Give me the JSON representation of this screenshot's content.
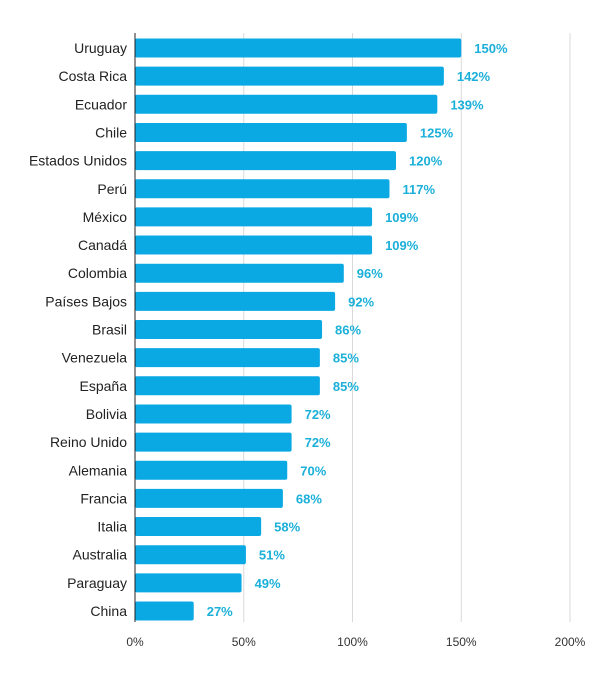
{
  "chart_data": {
    "type": "bar",
    "orientation": "horizontal",
    "categories": [
      "Uruguay",
      "Costa Rica",
      "Ecuador",
      "Chile",
      "Estados Unidos",
      "Perú",
      "México",
      "Canadá",
      "Colombia",
      "Países Bajos",
      "Brasil",
      "Venezuela",
      "España",
      "Bolivia",
      "Reino Unido",
      "Alemania",
      "Francia",
      "Italia",
      "Australia",
      "Paraguay",
      "China"
    ],
    "values": [
      150,
      142,
      139,
      125,
      120,
      117,
      109,
      109,
      96,
      92,
      86,
      85,
      85,
      72,
      72,
      70,
      68,
      58,
      51,
      49,
      27
    ],
    "value_suffix": "%",
    "xlim": [
      0,
      200
    ],
    "x_ticks": [
      0,
      50,
      100,
      150,
      200
    ],
    "x_tick_labels": [
      "0%",
      "50%",
      "100%",
      "150%",
      "200%"
    ],
    "title": "",
    "xlabel": "",
    "ylabel": "",
    "grid": "vertical",
    "legend": "none",
    "colors": {
      "bar": "#0aa9e4",
      "value_label": "#1bb0d9",
      "grid": "#d9d9d9",
      "axis": "#222222"
    }
  }
}
